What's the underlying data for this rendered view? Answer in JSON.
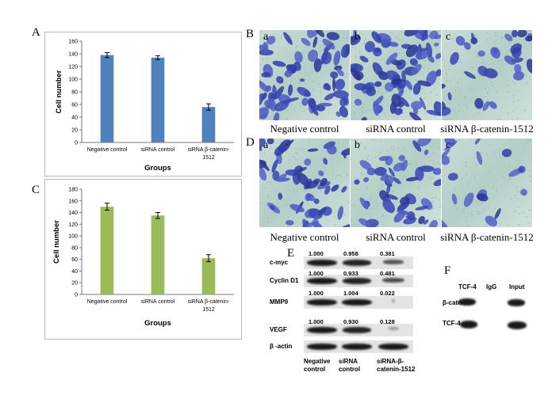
{
  "panel_labels": {
    "a": "A",
    "b": "B",
    "c": "C",
    "d": "D",
    "e": "E",
    "f": "F"
  },
  "chart_data": [
    {
      "type": "bar",
      "panel": "A",
      "categories": [
        "Negative control",
        "siRNA control",
        "siRNA β-catenin-1512"
      ],
      "category_lines": [
        [
          "Negative control"
        ],
        [
          "siRNA control"
        ],
        [
          "siRNA β-catenin-",
          "1512"
        ]
      ],
      "values": [
        138,
        134,
        56
      ],
      "errors": [
        4,
        3,
        5
      ],
      "xlabel": "Groups",
      "ylabel": "Cell number",
      "ylim": [
        0,
        160
      ],
      "yticks": [
        "0",
        "20",
        "40",
        "60",
        "80",
        "100",
        "120",
        "140",
        "160"
      ],
      "bar_color": "#4f81bd",
      "grid": false
    },
    {
      "type": "bar",
      "panel": "C",
      "categories": [
        "Negative control",
        "siRNA control",
        "siRNA β-catenin-1512"
      ],
      "category_lines": [
        [
          "Negative control"
        ],
        [
          "siRNA control"
        ],
        [
          "siRNA β-catenin-",
          "1512"
        ]
      ],
      "values": [
        150,
        135,
        62
      ],
      "errors": [
        6,
        5,
        6
      ],
      "xlabel": "Groups",
      "ylabel": "Cell number",
      "ylim": [
        0,
        180
      ],
      "yticks": [
        "0",
        "20",
        "40",
        "60",
        "80",
        "100",
        "120",
        "140",
        "160",
        "180"
      ],
      "bar_color": "#9bbb59",
      "grid": false
    }
  ],
  "micrographs": {
    "B": {
      "letters": [
        "a",
        "b",
        "c"
      ],
      "captions": [
        "Negative control",
        "siRNA control",
        "siRNA β-catenin-1512"
      ]
    },
    "D": {
      "letters": [
        "a",
        "b",
        "c"
      ],
      "captions": [
        "Negative control",
        "siRNA control",
        "siRNA β-catenin-1512"
      ]
    }
  },
  "western_E": {
    "rows": [
      {
        "label": "c-myc",
        "values": [
          "1.000",
          "0.958",
          "0.381"
        ]
      },
      {
        "label": "Cyclin D1",
        "values": [
          "1.000",
          "0.933",
          "0.481"
        ]
      },
      {
        "label": "MMP9",
        "values": [
          "1.000",
          "1.004",
          "0.022"
        ]
      },
      {
        "label": "VEGF",
        "values": [
          "1.000",
          "0.930",
          "0.128"
        ]
      },
      {
        "label": "β -actin",
        "values": []
      }
    ],
    "lanes": [
      [
        "Negative",
        "control"
      ],
      [
        "siRNA",
        "control"
      ],
      [
        "siRNA-β-",
        "catenin-1512"
      ]
    ]
  },
  "western_F": {
    "lanes": [
      "TCF-4",
      "IgG",
      "Input"
    ],
    "rows": [
      "β-catenin",
      "TCF-4"
    ]
  }
}
